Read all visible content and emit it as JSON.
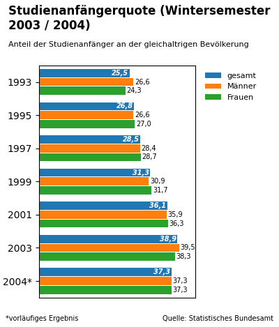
{
  "chart_data": {
    "type": "bar",
    "orientation": "horizontal",
    "title": "Studienanfängerquote (Wintersemester 2003 / 2004)",
    "subtitle": "Anteil der Studienanfänger an der gleichaltrigen Bevölkerung",
    "annotations": [
      "*vorläufiges Ergebnis",
      "Quelle: Statistisches Bundesamt"
    ],
    "categories": [
      "1993",
      "1995",
      "1997",
      "1999",
      "2001",
      "2003",
      "2004*"
    ],
    "series": [
      {
        "name": "gesamt",
        "values": [
          25.5,
          26.8,
          28.5,
          31.3,
          36.1,
          38.9,
          37.3
        ],
        "value_labels": [
          "25,5",
          "26,8",
          "28,5",
          "31,3",
          "36,1",
          "38,9",
          "37,3"
        ]
      },
      {
        "name": "Männer",
        "values": [
          26.6,
          26.6,
          28.4,
          30.9,
          35.9,
          39.5,
          37.3
        ],
        "value_labels": [
          "26,6",
          "26,6",
          "28,4",
          "30,9",
          "35,9",
          "39,5",
          "37,3"
        ]
      },
      {
        "name": "Frauen",
        "values": [
          24.3,
          27.0,
          28.7,
          31.7,
          36.3,
          38.3,
          37.3
        ],
        "value_labels": [
          "24,3",
          "27,0",
          "28,7",
          "31,7",
          "36,3",
          "38,3",
          "37,3"
        ]
      }
    ],
    "xlim": [
      0,
      44
    ],
    "data_labels": true,
    "tick_labels": "y",
    "legend": "right"
  }
}
